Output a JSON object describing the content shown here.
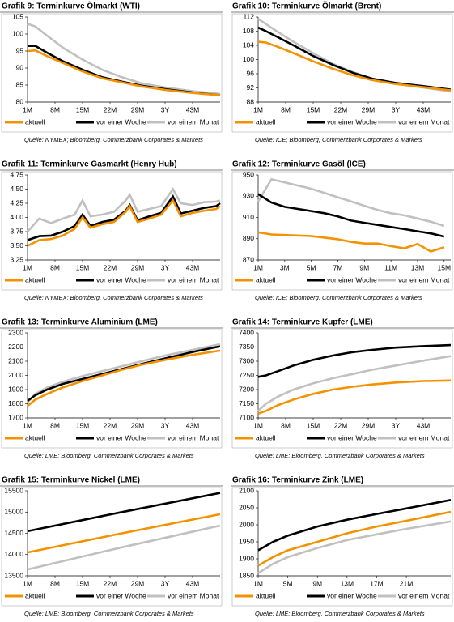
{
  "chart_data": [
    {
      "type": "line",
      "title": "Grafik 9: Terminkurve Ölmarkt (WTI)",
      "source": "Quelle: NYMEX; Bloomberg, Commerzbank Corporates & Markets",
      "x": [
        1,
        3,
        6,
        10,
        15,
        20,
        25,
        30,
        36,
        43,
        50
      ],
      "xlim": [
        1,
        50
      ],
      "xticks": [
        {
          "value": 1,
          "label": "1M"
        },
        {
          "value": 8,
          "label": "8M"
        },
        {
          "value": 15,
          "label": "15M"
        },
        {
          "value": 22,
          "label": "22M"
        },
        {
          "value": 29,
          "label": "29M"
        },
        {
          "value": 36,
          "label": "3Y"
        },
        {
          "value": 43,
          "label": "43M"
        }
      ],
      "ylim": [
        80,
        105
      ],
      "yticks": [
        80,
        85,
        90,
        95,
        100,
        105
      ],
      "series": [
        {
          "name": "aktuell",
          "color": "#f39200",
          "values": [
            95,
            95.2,
            93.5,
            91.5,
            89,
            87,
            85.8,
            84.6,
            83.6,
            82.7,
            82
          ]
        },
        {
          "name": "vor einer Woche",
          "color": "#000000",
          "values": [
            96.5,
            96.5,
            94.5,
            92,
            89.5,
            87.3,
            86,
            84.8,
            83.8,
            82.8,
            82
          ]
        },
        {
          "name": "vor einem Monat",
          "color": "#c0c0c0",
          "values": [
            103,
            102.2,
            99.5,
            96,
            92.5,
            89.5,
            87.3,
            85.5,
            84.3,
            83.2,
            82.4
          ]
        }
      ]
    },
    {
      "type": "line",
      "title": "Grafik 10: Terminkurve Ölmarkt (Brent)",
      "source": "Quelle: ICE; Bloomberg, Commerzbank Corporates & Markets",
      "x": [
        1,
        3,
        6,
        10,
        15,
        20,
        25,
        30,
        36,
        43,
        50
      ],
      "xlim": [
        1,
        50
      ],
      "xticks": [
        {
          "value": 1,
          "label": "1M"
        },
        {
          "value": 8,
          "label": "8M"
        },
        {
          "value": 15,
          "label": "15M"
        },
        {
          "value": 22,
          "label": "22M"
        },
        {
          "value": 29,
          "label": "29M"
        },
        {
          "value": 36,
          "label": "3Y"
        },
        {
          "value": 43,
          "label": "43M"
        }
      ],
      "ylim": [
        88,
        112
      ],
      "yticks": [
        88,
        92,
        96,
        100,
        104,
        108,
        112
      ],
      "series": [
        {
          "name": "aktuell",
          "color": "#f39200",
          "values": [
            105,
            104.8,
            103.6,
            101.8,
            99.5,
            97.4,
            95.6,
            94.2,
            93.1,
            92.2,
            91.3
          ]
        },
        {
          "name": "vor einer Woche",
          "color": "#000000",
          "values": [
            109,
            108,
            106.3,
            104,
            101,
            98.5,
            96.3,
            94.6,
            93.4,
            92.5,
            91.5
          ]
        },
        {
          "name": "vor einem Monat",
          "color": "#c0c0c0",
          "values": [
            111.5,
            110,
            107.8,
            105,
            101.8,
            98.8,
            96.5,
            94.6,
            93.2,
            92.1,
            91
          ]
        }
      ]
    },
    {
      "type": "line",
      "title": "Grafik 11: Terminkurve Gasmarkt (Henry Hub)",
      "source": "Quelle: NYMEX; Bloomberg, Commerzbank Corporates & Markets",
      "x": [
        1,
        4,
        7,
        10,
        13,
        15,
        17,
        20,
        23,
        26,
        27,
        29,
        32,
        35,
        38,
        40,
        43,
        46,
        49,
        50
      ],
      "xlim": [
        1,
        50
      ],
      "xticks": [
        {
          "value": 1,
          "label": "1M"
        },
        {
          "value": 8,
          "label": "8M"
        },
        {
          "value": 15,
          "label": "15M"
        },
        {
          "value": 22,
          "label": "22M"
        },
        {
          "value": 29,
          "label": "29M"
        },
        {
          "value": 36,
          "label": "3Y"
        },
        {
          "value": 43,
          "label": "43M"
        }
      ],
      "ylim": [
        3.25,
        4.75
      ],
      "yticks": [
        3.25,
        {
          "value": 3.5,
          "label": "3.50"
        },
        3.75,
        {
          "value": 4,
          "label": "4.00"
        },
        4.25,
        {
          "value": 4.5,
          "label": "4.50"
        },
        4.75
      ],
      "series": [
        {
          "name": "aktuell",
          "color": "#f39200",
          "values": [
            3.5,
            3.6,
            3.62,
            3.68,
            3.8,
            4.0,
            3.82,
            3.88,
            3.92,
            4.1,
            4.2,
            3.92,
            3.98,
            4.05,
            4.3,
            4.02,
            4.08,
            4.12,
            4.15,
            4.2
          ]
        },
        {
          "name": "vor einer Woche",
          "color": "#000000",
          "values": [
            3.6,
            3.67,
            3.68,
            3.75,
            3.85,
            4.05,
            3.85,
            3.92,
            3.96,
            4.12,
            4.22,
            3.95,
            4.02,
            4.08,
            4.37,
            4.07,
            4.12,
            4.17,
            4.2,
            4.25
          ]
        },
        {
          "name": "vor einem Monat",
          "color": "#c0c0c0",
          "values": [
            3.75,
            3.98,
            3.9,
            3.98,
            4.05,
            4.3,
            4.02,
            4.05,
            4.1,
            4.3,
            4.4,
            4.1,
            4.15,
            4.2,
            4.5,
            4.25,
            4.22,
            4.27,
            4.28,
            4.3
          ]
        }
      ]
    },
    {
      "type": "line",
      "title": "Grafik 12: Terminkurve Gasöl (ICE)",
      "source": "Quelle: ICE; Bloomberg, Commerzbank Corporates & Markets",
      "x": [
        1,
        2,
        3,
        4,
        5,
        6,
        7,
        8,
        9,
        10,
        11,
        12,
        13,
        14,
        15
      ],
      "xlim": [
        1,
        15.5
      ],
      "xticks": [
        {
          "value": 1,
          "label": "1M"
        },
        {
          "value": 3,
          "label": "3M"
        },
        {
          "value": 5,
          "label": "5M"
        },
        {
          "value": 7,
          "label": "7M"
        },
        {
          "value": 9,
          "label": "9M"
        },
        {
          "value": 11,
          "label": "11M"
        },
        {
          "value": 13,
          "label": "13M"
        },
        {
          "value": 15,
          "label": "15M"
        }
      ],
      "ylim": [
        870,
        950
      ],
      "yticks": [
        870,
        890,
        910,
        930,
        950
      ],
      "series": [
        {
          "name": "aktuell",
          "color": "#f39200",
          "values": [
            896,
            894,
            893.5,
            893,
            892.5,
            891,
            889.5,
            887,
            885.5,
            885.5,
            883,
            881,
            885,
            878,
            882
          ]
        },
        {
          "name": "vor einer Woche",
          "color": "#000000",
          "values": [
            932,
            924,
            920,
            918,
            916,
            914,
            911,
            907,
            905,
            903,
            901,
            899,
            897,
            895,
            892
          ]
        },
        {
          "name": "vor einem Monat",
          "color": "#c0c0c0",
          "values": [
            925,
            946,
            943,
            940,
            937,
            933,
            929,
            925,
            921,
            917,
            914,
            912,
            909,
            906,
            902
          ]
        }
      ]
    },
    {
      "type": "line",
      "title": "Grafik 13: Terminkurve Aluminium (LME)",
      "source": "Quelle: LME; Bloomberg, Commerzbank Corporates & Markets",
      "x": [
        1,
        3,
        6,
        10,
        15,
        20,
        25,
        30,
        36,
        43,
        50
      ],
      "xlim": [
        1,
        50
      ],
      "xticks": [
        {
          "value": 1,
          "label": "1M"
        },
        {
          "value": 8,
          "label": "8M"
        },
        {
          "value": 15,
          "label": "15M"
        },
        {
          "value": 22,
          "label": "22M"
        },
        {
          "value": 29,
          "label": "29M"
        },
        {
          "value": 36,
          "label": "3Y"
        },
        {
          "value": 43,
          "label": "43M"
        }
      ],
      "ylim": [
        1700,
        2300
      ],
      "yticks": [
        1700,
        1800,
        1900,
        2000,
        2100,
        2200,
        2300
      ],
      "series": [
        {
          "name": "aktuell",
          "color": "#f39200",
          "values": [
            1785,
            1830,
            1870,
            1915,
            1960,
            2000,
            2040,
            2075,
            2110,
            2145,
            2175
          ]
        },
        {
          "name": "vor einer Woche",
          "color": "#000000",
          "values": [
            1820,
            1860,
            1900,
            1940,
            1975,
            2010,
            2045,
            2080,
            2120,
            2165,
            2205
          ]
        },
        {
          "name": "vor einem Monat",
          "color": "#c0c0c0",
          "values": [
            1810,
            1870,
            1915,
            1955,
            1995,
            2030,
            2065,
            2100,
            2140,
            2180,
            2220
          ]
        }
      ]
    },
    {
      "type": "line",
      "title": "Grafik 14: Terminkurve Kupfer (LME)",
      "source": "Quelle: LME; Bloomberg, Commerzbank Corporates & Markets",
      "x": [
        1,
        3,
        6,
        10,
        15,
        20,
        25,
        30,
        36,
        43,
        50
      ],
      "xlim": [
        1,
        50
      ],
      "xticks": [
        {
          "value": 1,
          "label": "1M"
        },
        {
          "value": 8,
          "label": "8M"
        },
        {
          "value": 15,
          "label": "15M"
        },
        {
          "value": 22,
          "label": "22M"
        },
        {
          "value": 29,
          "label": "29M"
        },
        {
          "value": 36,
          "label": "3Y"
        },
        {
          "value": 43,
          "label": "43M"
        }
      ],
      "ylim": [
        7100,
        7400
      ],
      "yticks": [
        7100,
        7150,
        7200,
        7250,
        7300,
        7350,
        7400
      ],
      "series": [
        {
          "name": "aktuell",
          "color": "#f39200",
          "values": [
            7115,
            7125,
            7145,
            7165,
            7185,
            7200,
            7210,
            7218,
            7225,
            7230,
            7232
          ]
        },
        {
          "name": "vor einer Woche",
          "color": "#000000",
          "values": [
            7245,
            7250,
            7265,
            7285,
            7305,
            7320,
            7332,
            7340,
            7348,
            7353,
            7357
          ]
        },
        {
          "name": "vor einem Monat",
          "color": "#c0c0c0",
          "values": [
            7125,
            7150,
            7175,
            7200,
            7222,
            7240,
            7255,
            7270,
            7285,
            7302,
            7318
          ]
        }
      ]
    },
    {
      "type": "line",
      "title": "Grafik 15: Terminkurve Nickel (LME)",
      "source": "Quelle: LME; Bloomberg, Commerzbank Corporates & Markets",
      "x": [
        1,
        25,
        50
      ],
      "xlim": [
        1,
        50
      ],
      "xticks": [
        {
          "value": 1,
          "label": "1M"
        },
        {
          "value": 8,
          "label": "8M"
        },
        {
          "value": 15,
          "label": "15M"
        },
        {
          "value": 22,
          "label": "22M"
        },
        {
          "value": 29,
          "label": "29M"
        },
        {
          "value": 36,
          "label": "3Y"
        },
        {
          "value": 43,
          "label": "43M"
        }
      ],
      "ylim": [
        13500,
        15500
      ],
      "yticks": [
        13500,
        14000,
        14500,
        15000,
        15500
      ],
      "series": [
        {
          "name": "aktuell",
          "color": "#f39200",
          "values": [
            14050,
            14500,
            14950
          ]
        },
        {
          "name": "vor einer Woche",
          "color": "#000000",
          "values": [
            14550,
            15000,
            15450
          ]
        },
        {
          "name": "vor einem Monat",
          "color": "#c0c0c0",
          "values": [
            13650,
            14170,
            14680
          ]
        }
      ]
    },
    {
      "type": "line",
      "title": "Grafik 16: Terminkurve Zink (LME)",
      "source": "Quelle: LME; Bloomberg, Commerzbank Corporates & Markets",
      "x": [
        1,
        3,
        5,
        9,
        13,
        17,
        21,
        27
      ],
      "xlim": [
        1,
        27
      ],
      "xticks": [
        {
          "value": 1,
          "label": "1M"
        },
        {
          "value": 5,
          "label": "5M"
        },
        {
          "value": 9,
          "label": "9M"
        },
        {
          "value": 13,
          "label": "13M"
        },
        {
          "value": 17,
          "label": "17M"
        },
        {
          "value": 21,
          "label": "21M"
        }
      ],
      "ylim": [
        1850,
        2100
      ],
      "yticks": [
        1850,
        1900,
        1950,
        2000,
        2050,
        2100
      ],
      "series": [
        {
          "name": "aktuell",
          "color": "#f39200",
          "values": [
            1880,
            1905,
            1925,
            1950,
            1975,
            1995,
            2012,
            2038
          ]
        },
        {
          "name": "vor einer Woche",
          "color": "#000000",
          "values": [
            1925,
            1950,
            1968,
            1995,
            2015,
            2032,
            2048,
            2073
          ]
        },
        {
          "name": "vor einem Monat",
          "color": "#c0c0c0",
          "values": [
            1858,
            1885,
            1905,
            1932,
            1955,
            1972,
            1988,
            2010
          ]
        }
      ]
    }
  ]
}
